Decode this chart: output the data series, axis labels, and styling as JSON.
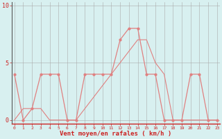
{
  "x": [
    0,
    1,
    2,
    3,
    4,
    5,
    6,
    7,
    8,
    9,
    10,
    11,
    12,
    13,
    14,
    15,
    16,
    17,
    18,
    19,
    20,
    21,
    22,
    23
  ],
  "y_rafales": [
    4,
    0,
    1,
    4,
    4,
    4,
    0,
    0,
    4,
    4,
    4,
    4,
    7,
    8,
    8,
    4,
    4,
    0,
    0,
    0,
    4,
    4,
    0,
    0
  ],
  "y_moyen": [
    0,
    1,
    1,
    1,
    0,
    0,
    0,
    0,
    1,
    2,
    3,
    4,
    5,
    6,
    7,
    7,
    5,
    4,
    0,
    0,
    0,
    0,
    0,
    0
  ],
  "color_line": "#e08080",
  "color_bg": "#d8f0f0",
  "xlabel": "Vent moyen/en rafales ( km/h )",
  "ylabel_ticks": [
    0,
    5,
    10
  ],
  "xlim": [
    0,
    23
  ],
  "ylim": [
    0,
    10
  ],
  "grid_color": "#aaaaaa",
  "axis_color": "#cc2222",
  "tick_color": "#cc2222"
}
